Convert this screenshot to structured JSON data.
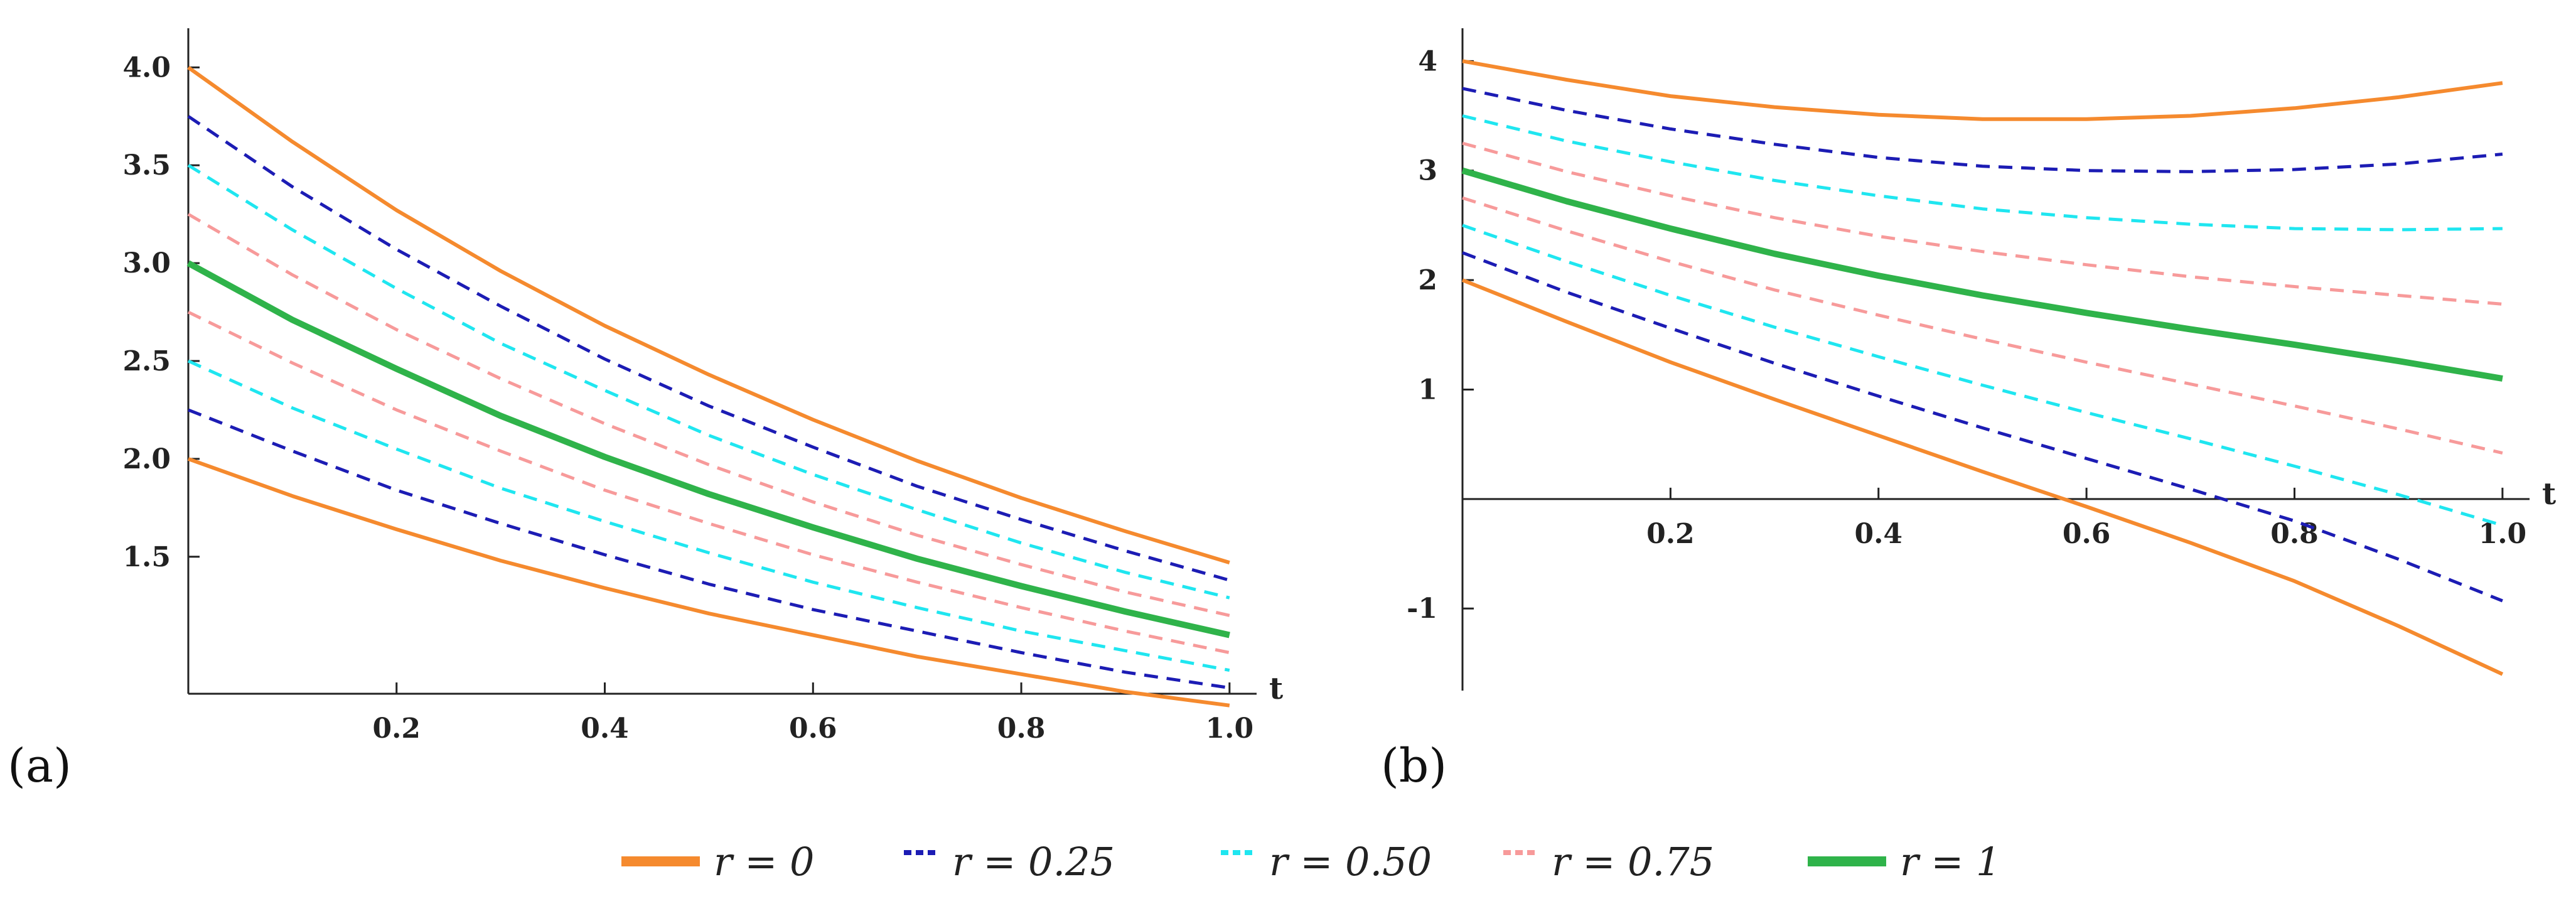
{
  "chart_data": [
    {
      "type": "line",
      "panel_label": "(a)",
      "xlabel": "t",
      "ylabel": "",
      "xlim": [
        0,
        1.02
      ],
      "ylim": [
        0.8,
        4.2
      ],
      "x_ticks": [
        0.2,
        0.4,
        0.6,
        0.8,
        1.0
      ],
      "x_tick_labels": [
        "0.2",
        "0.4",
        "0.6",
        "0.8",
        "1.0"
      ],
      "y_ticks": [
        1.5,
        2.0,
        2.5,
        3.0,
        3.5,
        4.0
      ],
      "y_tick_labels": [
        "1.5",
        "2.0",
        "2.5",
        "3.0",
        "3.5",
        "4.0"
      ],
      "x": [
        0,
        0.1,
        0.2,
        0.3,
        0.4,
        0.5,
        0.6,
        0.7,
        0.8,
        0.9,
        1.0
      ],
      "series": [
        {
          "name": "r = 0 (upper)",
          "style": "r0",
          "values": [
            4.0,
            3.62,
            3.27,
            2.96,
            2.68,
            2.43,
            2.2,
            1.99,
            1.8,
            1.63,
            1.47
          ]
        },
        {
          "name": "r = 0.25 (upper)",
          "style": "r25",
          "values": [
            3.75,
            3.39,
            3.07,
            2.78,
            2.51,
            2.27,
            2.06,
            1.86,
            1.69,
            1.53,
            1.38
          ]
        },
        {
          "name": "r = 0.50 (upper)",
          "style": "r50",
          "values": [
            3.5,
            3.17,
            2.87,
            2.59,
            2.35,
            2.12,
            1.92,
            1.74,
            1.57,
            1.42,
            1.29
          ]
        },
        {
          "name": "r = 0.75 (upper)",
          "style": "r75",
          "values": [
            3.25,
            2.94,
            2.66,
            2.41,
            2.18,
            1.97,
            1.78,
            1.61,
            1.46,
            1.32,
            1.2
          ]
        },
        {
          "name": "r = 1",
          "style": "r1",
          "values": [
            3.0,
            2.71,
            2.46,
            2.22,
            2.01,
            1.82,
            1.65,
            1.49,
            1.35,
            1.22,
            1.1
          ]
        },
        {
          "name": "r = 0.75 (lower)",
          "style": "r75",
          "values": [
            2.75,
            2.49,
            2.25,
            2.04,
            1.84,
            1.67,
            1.51,
            1.37,
            1.24,
            1.12,
            1.01
          ]
        },
        {
          "name": "r = 0.50 (lower)",
          "style": "r50",
          "values": [
            2.5,
            2.26,
            2.05,
            1.85,
            1.68,
            1.52,
            1.37,
            1.24,
            1.12,
            1.02,
            0.92
          ]
        },
        {
          "name": "r = 0.25 (lower)",
          "style": "r25",
          "values": [
            2.25,
            2.04,
            1.84,
            1.67,
            1.51,
            1.36,
            1.23,
            1.12,
            1.01,
            0.91,
            0.83
          ]
        },
        {
          "name": "r = 0 (lower)",
          "style": "r0",
          "values": [
            2.0,
            1.81,
            1.64,
            1.48,
            1.34,
            1.21,
            1.1,
            0.99,
            0.9,
            0.81,
            0.74
          ]
        }
      ]
    },
    {
      "type": "line",
      "panel_label": "(b)",
      "xlabel": "t",
      "ylabel": "",
      "xlim": [
        0,
        1.02
      ],
      "ylim": [
        -1.75,
        4.3
      ],
      "x_ticks": [
        0.2,
        0.4,
        0.6,
        0.8,
        1.0
      ],
      "x_tick_labels": [
        "0.2",
        "0.4",
        "0.6",
        "0.8",
        "1.0"
      ],
      "y_ticks": [
        -1,
        1,
        2,
        3,
        4
      ],
      "y_tick_labels": [
        "-1",
        "1",
        "2",
        "3",
        "4"
      ],
      "x": [
        0,
        0.1,
        0.2,
        0.3,
        0.4,
        0.5,
        0.6,
        0.7,
        0.8,
        0.9,
        1.0
      ],
      "series": [
        {
          "name": "r = 0 (upper)",
          "style": "r0",
          "values": [
            4.0,
            3.83,
            3.68,
            3.58,
            3.51,
            3.47,
            3.47,
            3.5,
            3.57,
            3.67,
            3.8
          ]
        },
        {
          "name": "r = 0.25 (upper)",
          "style": "r25",
          "values": [
            3.75,
            3.55,
            3.38,
            3.24,
            3.12,
            3.04,
            3.0,
            2.99,
            3.01,
            3.06,
            3.15
          ]
        },
        {
          "name": "r = 0.50 (upper)",
          "style": "r50",
          "values": [
            3.5,
            3.27,
            3.08,
            2.91,
            2.77,
            2.65,
            2.57,
            2.51,
            2.47,
            2.46,
            2.47
          ]
        },
        {
          "name": "r = 0.75 (upper)",
          "style": "r75",
          "values": [
            3.25,
            2.99,
            2.77,
            2.57,
            2.4,
            2.26,
            2.14,
            2.03,
            1.94,
            1.86,
            1.78
          ]
        },
        {
          "name": "r = 1",
          "style": "r1",
          "values": [
            3.0,
            2.72,
            2.47,
            2.24,
            2.04,
            1.86,
            1.7,
            1.55,
            1.41,
            1.26,
            1.1
          ]
        },
        {
          "name": "r = 0.75 (lower)",
          "style": "r75",
          "values": [
            2.75,
            2.45,
            2.17,
            1.91,
            1.68,
            1.46,
            1.25,
            1.05,
            0.85,
            0.64,
            0.42
          ]
        },
        {
          "name": "r = 0.50 (lower)",
          "style": "r50",
          "values": [
            2.5,
            2.17,
            1.86,
            1.57,
            1.3,
            1.04,
            0.79,
            0.55,
            0.3,
            0.04,
            -0.24
          ]
        },
        {
          "name": "r = 0.25 (lower)",
          "style": "r25",
          "values": [
            2.25,
            1.89,
            1.56,
            1.24,
            0.94,
            0.65,
            0.37,
            0.09,
            -0.2,
            -0.55,
            -0.93
          ]
        },
        {
          "name": "r = 0 (lower)",
          "style": "r0",
          "values": [
            2.0,
            1.62,
            1.25,
            0.91,
            0.58,
            0.25,
            -0.07,
            -0.4,
            -0.75,
            -1.16,
            -1.6
          ]
        }
      ]
    }
  ],
  "legend": {
    "items": [
      {
        "style": "r0",
        "label": "r = 0"
      },
      {
        "style": "r25",
        "label": "r = 0.25"
      },
      {
        "style": "r50",
        "label": "r = 0.50"
      },
      {
        "style": "r75",
        "label": "r = 0.75"
      },
      {
        "style": "r1",
        "label": "r = 1"
      }
    ]
  },
  "styles": {
    "r0": {
      "color": "#f58a2e",
      "dash": "solid"
    },
    "r25": {
      "color": "#1c1cb4",
      "dash": "dashed"
    },
    "r50": {
      "color": "#1fe6f0",
      "dash": "dashed"
    },
    "r75": {
      "color": "#f79a9a",
      "dash": "dashed"
    },
    "r1": {
      "color": "#2fb34a",
      "dash": "solid"
    }
  }
}
